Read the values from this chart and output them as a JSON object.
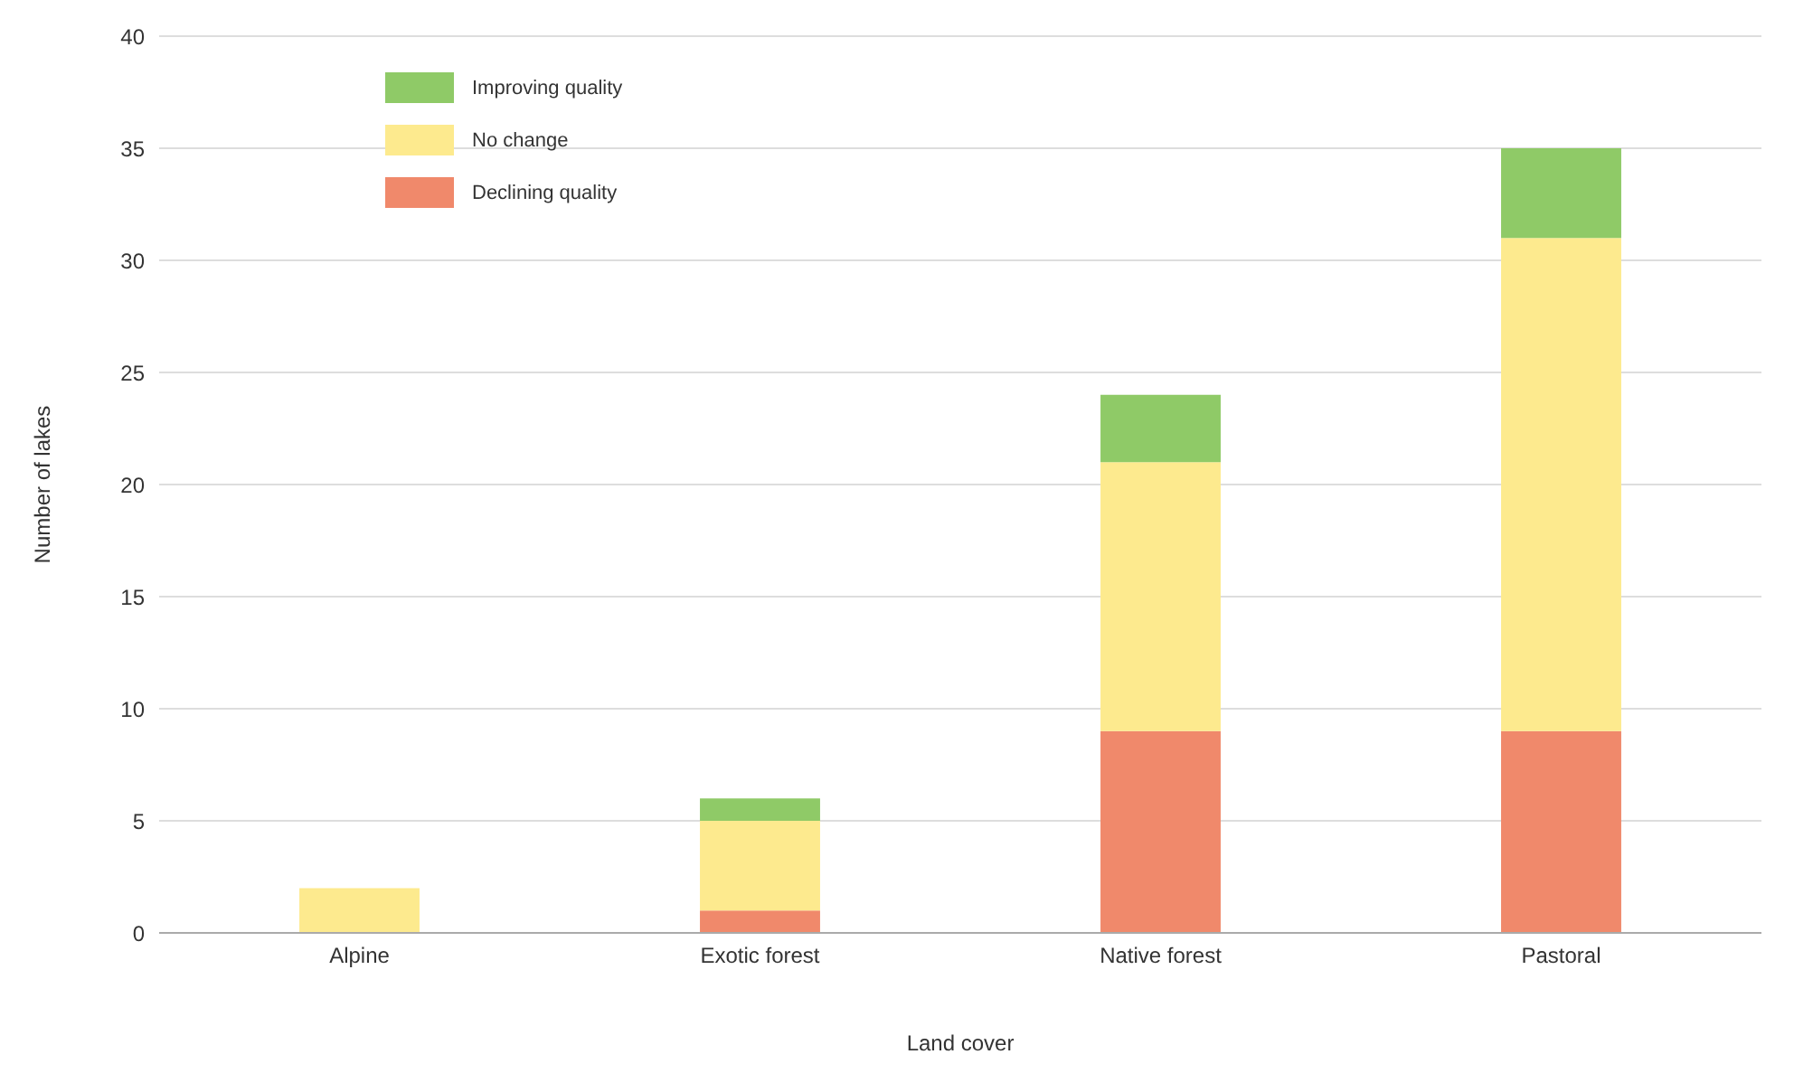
{
  "chart_data": {
    "type": "bar",
    "stacked": true,
    "xlabel": "Land cover",
    "ylabel": "Number of lakes",
    "categories": [
      "Alpine",
      "Exotic forest",
      "Native forest",
      "Pastoral"
    ],
    "series": [
      {
        "name": "Declining quality",
        "color": "#f0896b",
        "values": [
          0,
          1,
          9,
          9
        ]
      },
      {
        "name": "No change",
        "color": "#fdea8e",
        "values": [
          2,
          4,
          12,
          22
        ]
      },
      {
        "name": "Improving quality",
        "color": "#8fca67",
        "values": [
          0,
          1,
          3,
          4
        ]
      }
    ],
    "ylim": [
      0,
      40
    ],
    "yticks": [
      0,
      5,
      10,
      15,
      20,
      25,
      30,
      35,
      40
    ],
    "grid": "y",
    "legend": "top left"
  }
}
